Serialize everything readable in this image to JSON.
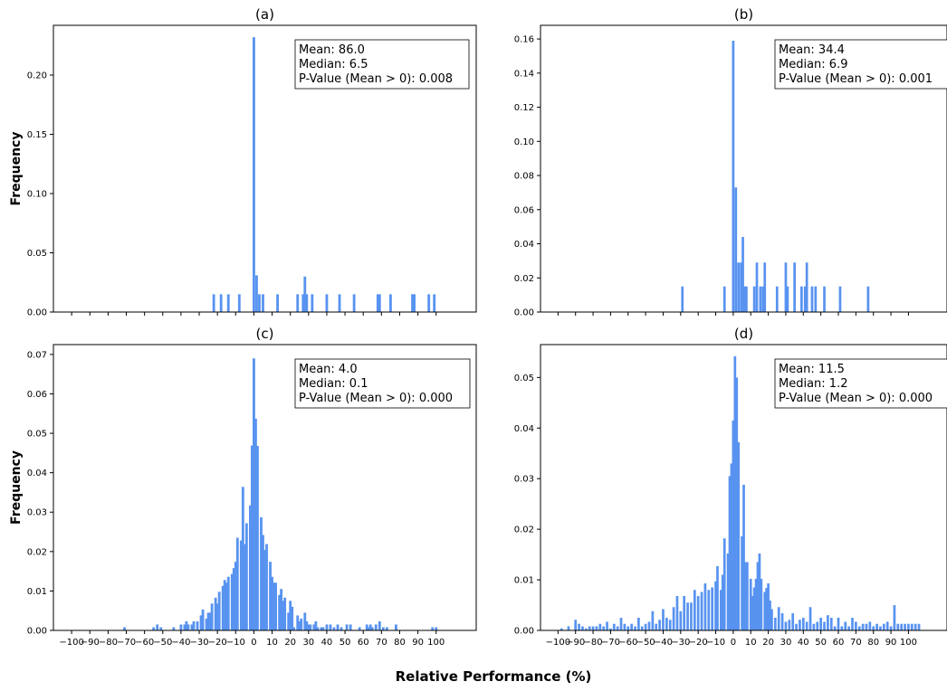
{
  "figure": {
    "xlabel": "Relative Performance (%)",
    "bar_color": "#5893f0"
  },
  "chart_data": [
    {
      "type": "bar",
      "title": "(a)",
      "ylabel": "Frequency",
      "xlabel": "",
      "bin_width": 1.4,
      "xlim": [
        -110,
        122
      ],
      "ylim": [
        0,
        0.242
      ],
      "yticks": [
        0.0,
        0.05,
        0.1,
        0.15,
        0.2
      ],
      "ytick_labels": [
        "0.00",
        "0.05",
        "0.10",
        "0.15",
        "0.20"
      ],
      "xticks": [
        -100,
        -90,
        -80,
        -70,
        -60,
        -50,
        -40,
        -30,
        -20,
        -10,
        0,
        10,
        20,
        30,
        40,
        50,
        60,
        70,
        80,
        90,
        100
      ],
      "xtick_labels": [],
      "stats": {
        "mean": "Mean: 86.0",
        "median": "Median: 6.5",
        "pvalue": "P-Value (Mean > 0): 0.008"
      },
      "bars": [
        [
          -22,
          0.015
        ],
        [
          -18,
          0.015
        ],
        [
          -14,
          0.015
        ],
        [
          -8,
          0.015
        ],
        [
          0,
          0.232
        ],
        [
          1.5,
          0.031
        ],
        [
          3,
          0.015
        ],
        [
          5,
          0.015
        ],
        [
          13,
          0.015
        ],
        [
          24,
          0.015
        ],
        [
          27,
          0.015
        ],
        [
          28,
          0.03
        ],
        [
          29,
          0.015
        ],
        [
          32,
          0.015
        ],
        [
          40,
          0.015
        ],
        [
          47,
          0.015
        ],
        [
          55,
          0.015
        ],
        [
          68,
          0.015
        ],
        [
          69,
          0.015
        ],
        [
          75,
          0.015
        ],
        [
          87,
          0.015
        ],
        [
          88,
          0.015
        ],
        [
          96,
          0.015
        ],
        [
          99,
          0.015
        ]
      ]
    },
    {
      "type": "bar",
      "title": "(b)",
      "ylabel": "",
      "xlabel": "",
      "bin_width": 1.4,
      "xlim": [
        -110,
        122
      ],
      "ylim": [
        0,
        0.168
      ],
      "yticks": [
        0.0,
        0.02,
        0.04,
        0.06,
        0.08,
        0.1,
        0.12,
        0.14,
        0.16
      ],
      "ytick_labels": [
        "0.00",
        "0.02",
        "0.04",
        "0.06",
        "0.08",
        "0.10",
        "0.12",
        "0.14",
        "0.16"
      ],
      "xticks": [
        -100,
        -90,
        -80,
        -70,
        -60,
        -50,
        -40,
        -30,
        -20,
        -10,
        0,
        10,
        20,
        30,
        40,
        50,
        60,
        70,
        80,
        90,
        100
      ],
      "xtick_labels": [],
      "stats": {
        "mean": "Mean: 34.4",
        "median": "Median: 6.9",
        "pvalue": "P-Value (Mean > 0): 0.001"
      },
      "bars": [
        [
          -29,
          0.015
        ],
        [
          -5,
          0.015
        ],
        [
          0,
          0.159
        ],
        [
          1.5,
          0.073
        ],
        [
          3,
          0.029
        ],
        [
          4.5,
          0.029
        ],
        [
          5.5,
          0.044
        ],
        [
          6.5,
          0.015
        ],
        [
          7.5,
          0.015
        ],
        [
          12,
          0.015
        ],
        [
          13.5,
          0.029
        ],
        [
          15.5,
          0.015
        ],
        [
          17,
          0.015
        ],
        [
          18,
          0.029
        ],
        [
          25,
          0.015
        ],
        [
          30,
          0.029
        ],
        [
          31,
          0.015
        ],
        [
          35,
          0.029
        ],
        [
          39,
          0.015
        ],
        [
          41,
          0.015
        ],
        [
          42,
          0.029
        ],
        [
          45,
          0.015
        ],
        [
          47,
          0.015
        ],
        [
          52,
          0.015
        ],
        [
          61,
          0.015
        ],
        [
          77,
          0.015
        ]
      ]
    },
    {
      "type": "bar",
      "title": "(c)",
      "ylabel": "Frequency",
      "xlabel": "",
      "bin_width": 1.4,
      "xlim": [
        -110,
        122
      ],
      "ylim": [
        0,
        0.0725
      ],
      "yticks": [
        0.0,
        0.01,
        0.02,
        0.03,
        0.04,
        0.05,
        0.06,
        0.07
      ],
      "ytick_labels": [
        "0.00",
        "0.01",
        "0.02",
        "0.03",
        "0.04",
        "0.05",
        "0.06",
        "0.07"
      ],
      "xticks": [
        -100,
        -90,
        -80,
        -70,
        -60,
        -50,
        -40,
        -30,
        -20,
        -10,
        0,
        10,
        20,
        30,
        40,
        50,
        60,
        70,
        80,
        90,
        100
      ],
      "xtick_labels": [
        "−100",
        "−90",
        "−80",
        "−70",
        "−60",
        "−50",
        "−40",
        "−30",
        "−20",
        "−10",
        "0",
        "10",
        "20",
        "30",
        "40",
        "50",
        "60",
        "70",
        "80",
        "90",
        "100"
      ],
      "stats": {
        "mean": "Mean: 4.0",
        "median": "Median: 0.1",
        "pvalue": "P-Value (Mean > 0): 0.000"
      },
      "bars": [
        [
          -71,
          0.0008
        ],
        [
          -55,
          0.0008
        ],
        [
          -53,
          0.0015
        ],
        [
          -51,
          0.0008
        ],
        [
          -44,
          0.0008
        ],
        [
          -40,
          0.0015
        ],
        [
          -38,
          0.0015
        ],
        [
          -37,
          0.0023
        ],
        [
          -36,
          0.0015
        ],
        [
          -34,
          0.0015
        ],
        [
          -33,
          0.0023
        ],
        [
          -31,
          0.0023
        ],
        [
          -29,
          0.0038
        ],
        [
          -28,
          0.0053
        ],
        [
          -26,
          0.003
        ],
        [
          -25,
          0.0045
        ],
        [
          -24,
          0.0045
        ],
        [
          -23,
          0.0068
        ],
        [
          -21,
          0.0083
        ],
        [
          -20,
          0.0068
        ],
        [
          -19,
          0.0098
        ],
        [
          -17,
          0.0113
        ],
        [
          -16,
          0.0128
        ],
        [
          -15,
          0.0121
        ],
        [
          -14,
          0.0136
        ],
        [
          -12,
          0.0143
        ],
        [
          -11,
          0.0158
        ],
        [
          -10,
          0.0174
        ],
        [
          -9,
          0.0235
        ],
        [
          -7,
          0.0228
        ],
        [
          -6,
          0.0364
        ],
        [
          -5,
          0.0219
        ],
        [
          -4,
          0.0272
        ],
        [
          -2,
          0.0317
        ],
        [
          -1,
          0.0469
        ],
        [
          0,
          0.069
        ],
        [
          1,
          0.0537
        ],
        [
          2,
          0.0468
        ],
        [
          4,
          0.0287
        ],
        [
          5,
          0.0242
        ],
        [
          6,
          0.0204
        ],
        [
          7,
          0.0219
        ],
        [
          9,
          0.0174
        ],
        [
          10,
          0.0136
        ],
        [
          11,
          0.0121
        ],
        [
          12,
          0.0121
        ],
        [
          14,
          0.009
        ],
        [
          15,
          0.0105
        ],
        [
          16,
          0.0075
        ],
        [
          17,
          0.0083
        ],
        [
          19,
          0.0045
        ],
        [
          20,
          0.0075
        ],
        [
          21,
          0.006
        ],
        [
          22,
          0.0008
        ],
        [
          24,
          0.0038
        ],
        [
          25,
          0.0023
        ],
        [
          26,
          0.003
        ],
        [
          28,
          0.0045
        ],
        [
          29,
          0.0023
        ],
        [
          30,
          0.0015
        ],
        [
          31,
          0.0015
        ],
        [
          33,
          0.0015
        ],
        [
          34,
          0.0023
        ],
        [
          35,
          0.0008
        ],
        [
          37,
          0.0008
        ],
        [
          38,
          0.0008
        ],
        [
          40,
          0.0015
        ],
        [
          42,
          0.0015
        ],
        [
          44,
          0.0008
        ],
        [
          46,
          0.0015
        ],
        [
          48,
          0.0008
        ],
        [
          51,
          0.0015
        ],
        [
          53,
          0.0015
        ],
        [
          58,
          0.0008
        ],
        [
          62,
          0.0015
        ],
        [
          63,
          0.0008
        ],
        [
          64,
          0.0015
        ],
        [
          65,
          0.0008
        ],
        [
          67,
          0.0015
        ],
        [
          69,
          0.0023
        ],
        [
          71,
          0.0008
        ],
        [
          73,
          0.0008
        ],
        [
          78,
          0.0015
        ],
        [
          98,
          0.0008
        ],
        [
          100,
          0.0008
        ]
      ]
    },
    {
      "type": "bar",
      "title": "(d)",
      "ylabel": "",
      "xlabel": "",
      "bin_width": 1.4,
      "xlim": [
        -110,
        122
      ],
      "ylim": [
        0,
        0.0565
      ],
      "yticks": [
        0.0,
        0.01,
        0.02,
        0.03,
        0.04,
        0.05
      ],
      "ytick_labels": [
        "0.00",
        "0.01",
        "0.02",
        "0.03",
        "0.04",
        "0.05"
      ],
      "xticks": [
        -100,
        -90,
        -80,
        -70,
        -60,
        -50,
        -40,
        -30,
        -20,
        -10,
        0,
        10,
        20,
        30,
        40,
        50,
        60,
        70,
        80,
        90,
        100
      ],
      "xtick_labels": [
        "−100",
        "−90",
        "−80",
        "−70",
        "−60",
        "−50",
        "−40",
        "−30",
        "−20",
        "−10",
        "0",
        "10",
        "20",
        "30",
        "40",
        "50",
        "60",
        "70",
        "80",
        "90",
        "100"
      ],
      "stats": {
        "mean": "Mean: 11.5",
        "median": "Median: 1.2",
        "pvalue": "P-Value (Mean > 0): 0.000"
      },
      "bars": [
        [
          -98,
          0.0004
        ],
        [
          -94,
          0.0008
        ],
        [
          -90,
          0.0021
        ],
        [
          -88,
          0.0013
        ],
        [
          -86,
          0.0008
        ],
        [
          -84,
          0.0004
        ],
        [
          -82,
          0.0008
        ],
        [
          -80,
          0.0008
        ],
        [
          -78,
          0.0008
        ],
        [
          -76,
          0.0013
        ],
        [
          -74,
          0.0008
        ],
        [
          -72,
          0.0017
        ],
        [
          -70,
          0.0004
        ],
        [
          -68,
          0.0013
        ],
        [
          -66,
          0.0008
        ],
        [
          -64,
          0.0025
        ],
        [
          -62,
          0.0013
        ],
        [
          -60,
          0.0008
        ],
        [
          -58,
          0.0013
        ],
        [
          -56,
          0.0008
        ],
        [
          -54,
          0.0025
        ],
        [
          -52,
          0.0008
        ],
        [
          -50,
          0.0013
        ],
        [
          -48,
          0.0017
        ],
        [
          -46,
          0.0038
        ],
        [
          -44,
          0.0013
        ],
        [
          -42,
          0.0021
        ],
        [
          -40,
          0.0042
        ],
        [
          -38,
          0.0025
        ],
        [
          -36,
          0.0021
        ],
        [
          -34,
          0.0046
        ],
        [
          -32,
          0.0068
        ],
        [
          -30,
          0.0038
        ],
        [
          -28,
          0.0068
        ],
        [
          -26,
          0.0055
        ],
        [
          -24,
          0.0055
        ],
        [
          -22,
          0.008
        ],
        [
          -20,
          0.0068
        ],
        [
          -18,
          0.0076
        ],
        [
          -16,
          0.0093
        ],
        [
          -14,
          0.008
        ],
        [
          -12,
          0.0085
        ],
        [
          -10,
          0.0097
        ],
        [
          -9,
          0.0127
        ],
        [
          -7,
          0.008
        ],
        [
          -6,
          0.011
        ],
        [
          -5,
          0.0182
        ],
        [
          -3,
          0.0152
        ],
        [
          -2,
          0.0305
        ],
        [
          -1,
          0.033
        ],
        [
          0,
          0.0415
        ],
        [
          1,
          0.0542
        ],
        [
          2,
          0.05
        ],
        [
          3,
          0.0372
        ],
        [
          5,
          0.0186
        ],
        [
          6,
          0.0288
        ],
        [
          7,
          0.0135
        ],
        [
          8,
          0.0135
        ],
        [
          10,
          0.0102
        ],
        [
          11,
          0.0068
        ],
        [
          12,
          0.0085
        ],
        [
          13,
          0.0102
        ],
        [
          14,
          0.0135
        ],
        [
          15,
          0.0152
        ],
        [
          16,
          0.0102
        ],
        [
          18,
          0.0076
        ],
        [
          19,
          0.0084
        ],
        [
          20,
          0.0093
        ],
        [
          21,
          0.0059
        ],
        [
          22,
          0.0042
        ],
        [
          24,
          0.0025
        ],
        [
          26,
          0.0046
        ],
        [
          28,
          0.0034
        ],
        [
          30,
          0.0017
        ],
        [
          32,
          0.0021
        ],
        [
          34,
          0.0034
        ],
        [
          36,
          0.0013
        ],
        [
          38,
          0.0021
        ],
        [
          40,
          0.0025
        ],
        [
          42,
          0.0017
        ],
        [
          44,
          0.0046
        ],
        [
          46,
          0.0013
        ],
        [
          48,
          0.0017
        ],
        [
          50,
          0.0025
        ],
        [
          52,
          0.0017
        ],
        [
          54,
          0.003
        ],
        [
          56,
          0.0025
        ],
        [
          58,
          0.0008
        ],
        [
          60,
          0.0025
        ],
        [
          62,
          0.0008
        ],
        [
          64,
          0.0017
        ],
        [
          66,
          0.0008
        ],
        [
          68,
          0.0025
        ],
        [
          70,
          0.0017
        ],
        [
          72,
          0.0008
        ],
        [
          74,
          0.0013
        ],
        [
          76,
          0.0013
        ],
        [
          78,
          0.0017
        ],
        [
          80,
          0.0008
        ],
        [
          82,
          0.0013
        ],
        [
          84,
          0.0008
        ],
        [
          86,
          0.0013
        ],
        [
          88,
          0.0017
        ],
        [
          90,
          0.0008
        ],
        [
          92,
          0.005
        ],
        [
          94,
          0.0013
        ],
        [
          96,
          0.0013
        ],
        [
          98,
          0.0013
        ],
        [
          100,
          0.0013
        ],
        [
          102,
          0.0013
        ],
        [
          104,
          0.0013
        ],
        [
          106,
          0.0013
        ]
      ]
    }
  ]
}
